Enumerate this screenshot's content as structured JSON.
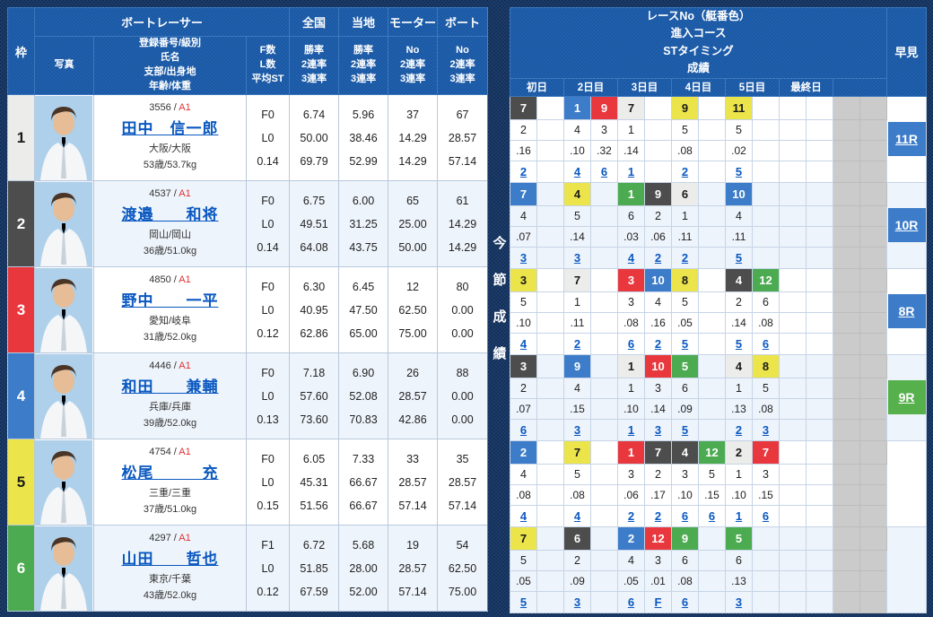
{
  "header": {
    "banner": "今節成績",
    "left": {
      "frame": "枠",
      "group": "ボートレーサー",
      "photo": "写真",
      "info_lines": "登録番号/級別\n氏名\n支部/出身地\n年齢/体重",
      "fl_lines": "F数\nL数\n平均ST",
      "cols": [
        {
          "top": "全国",
          "lines": "勝率\n2連率\n3連率"
        },
        {
          "top": "当地",
          "lines": "勝率\n2連率\n3連率"
        },
        {
          "top": "モーター",
          "lines": "No\n2連率\n3連率"
        },
        {
          "top": "ボート",
          "lines": "No\n2連率\n3連率"
        }
      ]
    },
    "right": {
      "title": "レースNo（艇番色）\n進入コース\nSTタイミング\n成績",
      "days": [
        "初日",
        "2日目",
        "3日目",
        "4日目",
        "5日目",
        "最終日",
        ""
      ],
      "hayami": "早見"
    }
  },
  "boat_colors": {
    "1": "#ececea",
    "2": "#4d4d4d",
    "3": "#e8383d",
    "4": "#3d7cc9",
    "5": "#ebe44a",
    "6": "#4cab50"
  },
  "dark_text_boats": [
    1,
    5
  ],
  "hayami_colors": {
    "blue": "#3d7cc9",
    "green": "#56b04c"
  },
  "racers": [
    {
      "frame": "1",
      "reg": "3556",
      "class": "A1",
      "name": "田中　信一郎",
      "branch": "大阪/大阪",
      "age_weight": "53歳/53.7kg",
      "fl": [
        "F0",
        "L0",
        "0.14"
      ],
      "national": [
        "6.74",
        "50.00",
        "69.79"
      ],
      "local": [
        "5.96",
        "38.46",
        "52.99"
      ],
      "motor": [
        "37",
        "14.29",
        "14.29"
      ],
      "boat": [
        "67",
        "28.57",
        "57.14"
      ],
      "results": [
        {
          "slot": 0,
          "race": "7",
          "boat": 2,
          "course": "2",
          "st": ".16",
          "fin": "2"
        },
        {
          "slot": 2,
          "race": "1",
          "boat": 4,
          "course": "4",
          "st": ".10",
          "fin": "4"
        },
        {
          "slot": 3,
          "race": "9",
          "boat": 3,
          "course": "3",
          "st": ".32",
          "fin": "6"
        },
        {
          "slot": 4,
          "race": "7",
          "boat": 1,
          "course": "1",
          "st": ".14",
          "fin": "1"
        },
        {
          "slot": 6,
          "race": "9",
          "boat": 5,
          "course": "5",
          "st": ".08",
          "fin": "2"
        },
        {
          "slot": 8,
          "race": "11",
          "boat": 5,
          "course": "5",
          "st": ".02",
          "fin": "5"
        }
      ],
      "hayami": {
        "label": "11R",
        "color": "blue"
      }
    },
    {
      "frame": "2",
      "reg": "4537",
      "class": "A1",
      "name": "渡邉　　和将",
      "branch": "岡山/岡山",
      "age_weight": "36歳/51.0kg",
      "fl": [
        "F0",
        "L0",
        "0.14"
      ],
      "national": [
        "6.75",
        "49.51",
        "64.08"
      ],
      "local": [
        "6.00",
        "31.25",
        "43.75"
      ],
      "motor": [
        "65",
        "25.00",
        "50.00"
      ],
      "boat": [
        "61",
        "14.29",
        "14.29"
      ],
      "results": [
        {
          "slot": 0,
          "race": "7",
          "boat": 4,
          "course": "4",
          "st": ".07",
          "fin": "3"
        },
        {
          "slot": 2,
          "race": "4",
          "boat": 5,
          "course": "5",
          "st": ".14",
          "fin": "3"
        },
        {
          "slot": 4,
          "race": "1",
          "boat": 6,
          "course": "6",
          "st": ".03",
          "fin": "4"
        },
        {
          "slot": 5,
          "race": "9",
          "boat": 2,
          "course": "2",
          "st": ".06",
          "fin": "2"
        },
        {
          "slot": 6,
          "race": "6",
          "boat": 1,
          "course": "1",
          "st": ".11",
          "fin": "2"
        },
        {
          "slot": 8,
          "race": "10",
          "boat": 4,
          "course": "4",
          "st": ".11",
          "fin": "5"
        }
      ],
      "hayami": {
        "label": "10R",
        "color": "blue"
      }
    },
    {
      "frame": "3",
      "reg": "4850",
      "class": "A1",
      "name": "野中　　一平",
      "branch": "愛知/岐阜",
      "age_weight": "31歳/52.0kg",
      "fl": [
        "F0",
        "L0",
        "0.12"
      ],
      "national": [
        "6.30",
        "40.95",
        "62.86"
      ],
      "local": [
        "6.45",
        "47.50",
        "65.00"
      ],
      "motor": [
        "12",
        "62.50",
        "75.00"
      ],
      "boat": [
        "80",
        "0.00",
        "0.00"
      ],
      "results": [
        {
          "slot": 0,
          "race": "3",
          "boat": 5,
          "course": "5",
          "st": ".10",
          "fin": "4"
        },
        {
          "slot": 2,
          "race": "7",
          "boat": 1,
          "course": "1",
          "st": ".11",
          "fin": "2"
        },
        {
          "slot": 4,
          "race": "3",
          "boat": 3,
          "course": "3",
          "st": ".08",
          "fin": "6"
        },
        {
          "slot": 5,
          "race": "10",
          "boat": 4,
          "course": "4",
          "st": ".16",
          "fin": "2"
        },
        {
          "slot": 6,
          "race": "8",
          "boat": 5,
          "course": "5",
          "st": ".05",
          "fin": "5"
        },
        {
          "slot": 8,
          "race": "4",
          "boat": 2,
          "course": "2",
          "st": ".14",
          "fin": "5"
        },
        {
          "slot": 9,
          "race": "12",
          "boat": 6,
          "course": "6",
          "st": ".08",
          "fin": "6"
        }
      ],
      "hayami": {
        "label": "8R",
        "color": "blue"
      }
    },
    {
      "frame": "4",
      "reg": "4446",
      "class": "A1",
      "name": "和田　　兼輔",
      "branch": "兵庫/兵庫",
      "age_weight": "39歳/52.0kg",
      "fl": [
        "F0",
        "L0",
        "0.13"
      ],
      "national": [
        "7.18",
        "57.60",
        "73.60"
      ],
      "local": [
        "6.90",
        "52.08",
        "70.83"
      ],
      "motor": [
        "26",
        "28.57",
        "42.86"
      ],
      "boat": [
        "88",
        "0.00",
        "0.00"
      ],
      "results": [
        {
          "slot": 0,
          "race": "3",
          "boat": 2,
          "course": "2",
          "st": ".07",
          "fin": "6"
        },
        {
          "slot": 2,
          "race": "9",
          "boat": 4,
          "course": "4",
          "st": ".15",
          "fin": "3"
        },
        {
          "slot": 4,
          "race": "1",
          "boat": 1,
          "course": "1",
          "st": ".10",
          "fin": "1"
        },
        {
          "slot": 5,
          "race": "10",
          "boat": 3,
          "course": "3",
          "st": ".14",
          "fin": "3"
        },
        {
          "slot": 6,
          "race": "5",
          "boat": 6,
          "course": "6",
          "st": ".09",
          "fin": "5"
        },
        {
          "slot": 8,
          "race": "4",
          "boat": 1,
          "course": "1",
          "st": ".13",
          "fin": "2"
        },
        {
          "slot": 9,
          "race": "8",
          "boat": 5,
          "course": "5",
          "st": ".08",
          "fin": "3"
        }
      ],
      "hayami": {
        "label": "9R",
        "color": "green"
      }
    },
    {
      "frame": "5",
      "reg": "4754",
      "class": "A1",
      "name": "松尾　　　充",
      "branch": "三重/三重",
      "age_weight": "37歳/51.0kg",
      "fl": [
        "F0",
        "L0",
        "0.15"
      ],
      "national": [
        "6.05",
        "45.31",
        "51.56"
      ],
      "local": [
        "7.33",
        "66.67",
        "66.67"
      ],
      "motor": [
        "33",
        "28.57",
        "57.14"
      ],
      "boat": [
        "35",
        "28.57",
        "57.14"
      ],
      "results": [
        {
          "slot": 0,
          "race": "2",
          "boat": 4,
          "course": "4",
          "st": ".08",
          "fin": "4"
        },
        {
          "slot": 2,
          "race": "7",
          "boat": 5,
          "course": "5",
          "st": ".08",
          "fin": "4"
        },
        {
          "slot": 4,
          "race": "1",
          "boat": 3,
          "course": "3",
          "st": ".06",
          "fin": "2"
        },
        {
          "slot": 5,
          "race": "7",
          "boat": 2,
          "course": "2",
          "st": ".17",
          "fin": "2"
        },
        {
          "slot": 6,
          "race": "4",
          "boat": 2,
          "course": "3",
          "st": ".10",
          "fin": "6"
        },
        {
          "slot": 7,
          "race": "12",
          "boat": 6,
          "course": "5",
          "st": ".15",
          "fin": "6"
        },
        {
          "slot": 8,
          "race": "2",
          "boat": 1,
          "course": "1",
          "st": ".10",
          "fin": "1"
        },
        {
          "slot": 9,
          "race": "7",
          "boat": 3,
          "course": "3",
          "st": ".15",
          "fin": "6"
        }
      ],
      "hayami": null
    },
    {
      "frame": "6",
      "reg": "4297",
      "class": "A1",
      "name": "山田　　哲也",
      "branch": "東京/千葉",
      "age_weight": "43歳/52.0kg",
      "fl": [
        "F1",
        "L0",
        "0.12"
      ],
      "national": [
        "6.72",
        "51.85",
        "67.59"
      ],
      "local": [
        "5.68",
        "28.00",
        "52.00"
      ],
      "motor": [
        "19",
        "28.57",
        "57.14"
      ],
      "boat": [
        "54",
        "62.50",
        "75.00"
      ],
      "results": [
        {
          "slot": 0,
          "race": "7",
          "boat": 5,
          "course": "5",
          "st": ".05",
          "fin": "5"
        },
        {
          "slot": 2,
          "race": "6",
          "boat": 2,
          "course": "2",
          "st": ".09",
          "fin": "3"
        },
        {
          "slot": 4,
          "race": "2",
          "boat": 4,
          "course": "4",
          "st": ".05",
          "fin": "6"
        },
        {
          "slot": 5,
          "race": "12",
          "boat": 3,
          "course": "3",
          "st": ".01",
          "fin": "F"
        },
        {
          "slot": 6,
          "race": "9",
          "boat": 6,
          "course": "6",
          "st": ".08",
          "fin": "6"
        },
        {
          "slot": 8,
          "race": "5",
          "boat": 6,
          "course": "6",
          "st": ".13",
          "fin": "3"
        }
      ],
      "hayami": null
    }
  ]
}
